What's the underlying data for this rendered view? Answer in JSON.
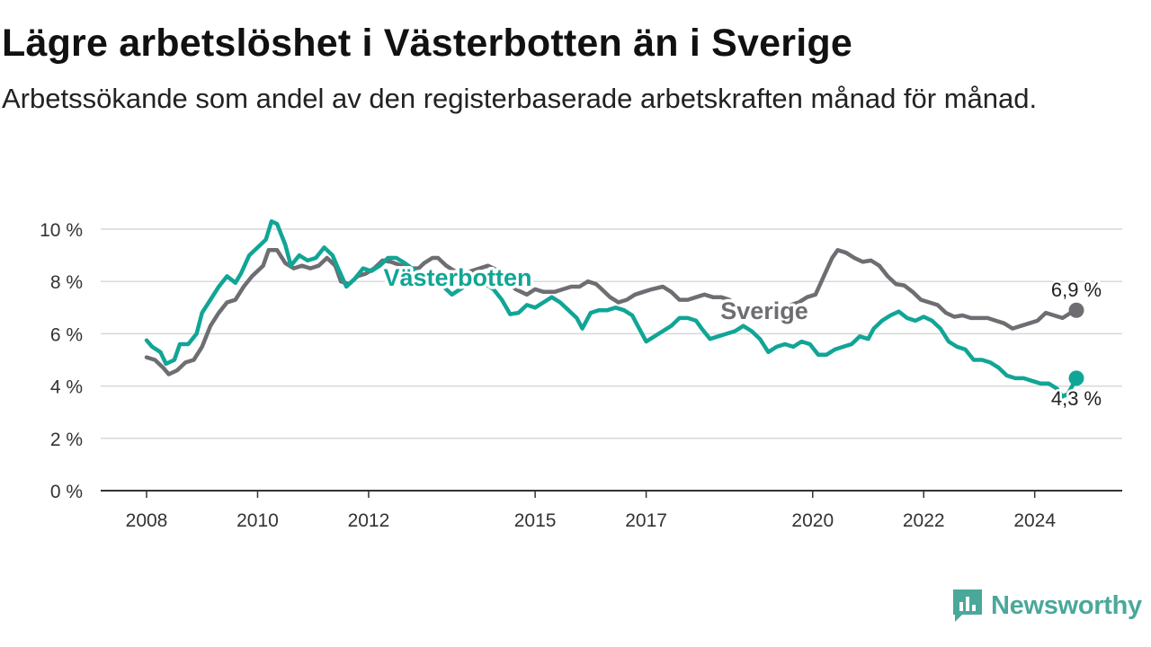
{
  "header": {
    "title": "Lägre arbetslöshet i Västerbotten än i Sverige",
    "subtitle": "Arbetssökande som andel av den registerbaserade arbetskraften månad för månad."
  },
  "brand": {
    "name": "Newsworthy",
    "color": "#4aa89a"
  },
  "chart_data": {
    "type": "line",
    "title": "Lägre arbetslöshet i Västerbotten än i Sverige",
    "subtitle": "Arbetssökande som andel av den registerbaserade arbetskraften månad för månad.",
    "xlabel": "",
    "ylabel": "",
    "x_range": [
      2008.0,
      2024.75
    ],
    "ylim": [
      0,
      10
    ],
    "y_ticks": [
      {
        "value": 0,
        "label": "0 %"
      },
      {
        "value": 2,
        "label": "2 %"
      },
      {
        "value": 4,
        "label": "4 %"
      },
      {
        "value": 6,
        "label": "6 %"
      },
      {
        "value": 8,
        "label": "8 %"
      },
      {
        "value": 10,
        "label": "10 %"
      }
    ],
    "x_ticks": [
      {
        "value": 2008,
        "label": "2008"
      },
      {
        "value": 2010,
        "label": "2010"
      },
      {
        "value": 2012,
        "label": "2012"
      },
      {
        "value": 2015,
        "label": "2015"
      },
      {
        "value": 2017,
        "label": "2017"
      },
      {
        "value": 2020,
        "label": "2020"
      },
      {
        "value": 2022,
        "label": "2022"
      },
      {
        "value": 2024,
        "label": "2024"
      }
    ],
    "grid": true,
    "legend": "inline labels",
    "series": [
      {
        "name": "Sverige",
        "color": "#6e6d72",
        "end_value": 6.9,
        "end_label": "6,9 %",
        "points": [
          [
            2008.0,
            5.1
          ],
          [
            2008.15,
            5.0
          ],
          [
            2008.3,
            4.7
          ],
          [
            2008.4,
            4.45
          ],
          [
            2008.55,
            4.6
          ],
          [
            2008.7,
            4.9
          ],
          [
            2008.85,
            5.0
          ],
          [
            2009.0,
            5.5
          ],
          [
            2009.15,
            6.3
          ],
          [
            2009.3,
            6.8
          ],
          [
            2009.45,
            7.2
          ],
          [
            2009.6,
            7.3
          ],
          [
            2009.75,
            7.8
          ],
          [
            2009.9,
            8.2
          ],
          [
            2010.1,
            8.6
          ],
          [
            2010.2,
            9.2
          ],
          [
            2010.35,
            9.2
          ],
          [
            2010.5,
            8.7
          ],
          [
            2010.65,
            8.5
          ],
          [
            2010.8,
            8.6
          ],
          [
            2010.95,
            8.5
          ],
          [
            2011.1,
            8.6
          ],
          [
            2011.25,
            8.9
          ],
          [
            2011.4,
            8.6
          ],
          [
            2011.5,
            8.0
          ],
          [
            2011.65,
            7.9
          ],
          [
            2011.8,
            8.2
          ],
          [
            2011.95,
            8.3
          ],
          [
            2012.1,
            8.5
          ],
          [
            2012.25,
            8.8
          ],
          [
            2012.4,
            8.75
          ],
          [
            2012.6,
            8.6
          ],
          [
            2012.75,
            8.5
          ],
          [
            2012.9,
            8.5
          ],
          [
            2013.0,
            8.7
          ],
          [
            2013.15,
            8.9
          ],
          [
            2013.25,
            8.9
          ],
          [
            2013.4,
            8.6
          ],
          [
            2013.55,
            8.4
          ],
          [
            2013.7,
            8.3
          ],
          [
            2013.85,
            8.4
          ],
          [
            2014.0,
            8.5
          ],
          [
            2014.15,
            8.6
          ],
          [
            2014.35,
            8.4
          ],
          [
            2014.5,
            8.0
          ],
          [
            2014.65,
            7.7
          ],
          [
            2014.85,
            7.5
          ],
          [
            2015.0,
            7.7
          ],
          [
            2015.15,
            7.6
          ],
          [
            2015.35,
            7.6
          ],
          [
            2015.5,
            7.7
          ],
          [
            2015.65,
            7.8
          ],
          [
            2015.8,
            7.8
          ],
          [
            2015.95,
            8.0
          ],
          [
            2016.1,
            7.9
          ],
          [
            2016.2,
            7.7
          ],
          [
            2016.35,
            7.4
          ],
          [
            2016.5,
            7.2
          ],
          [
            2016.65,
            7.3
          ],
          [
            2016.8,
            7.5
          ],
          [
            2016.95,
            7.6
          ],
          [
            2017.1,
            7.7
          ],
          [
            2017.3,
            7.8
          ],
          [
            2017.45,
            7.6
          ],
          [
            2017.6,
            7.3
          ],
          [
            2017.75,
            7.3
          ],
          [
            2017.9,
            7.4
          ],
          [
            2018.05,
            7.5
          ],
          [
            2018.2,
            7.4
          ],
          [
            2018.35,
            7.4
          ],
          [
            2018.5,
            7.3
          ],
          [
            2018.65,
            7.0
          ],
          [
            2018.8,
            6.8
          ],
          [
            2018.95,
            6.9
          ],
          [
            2019.1,
            7.0
          ],
          [
            2019.25,
            6.9
          ],
          [
            2019.45,
            7.0
          ],
          [
            2019.6,
            7.1
          ],
          [
            2019.75,
            7.2
          ],
          [
            2019.9,
            7.4
          ],
          [
            2020.05,
            7.5
          ],
          [
            2020.2,
            8.2
          ],
          [
            2020.35,
            8.9
          ],
          [
            2020.45,
            9.2
          ],
          [
            2020.6,
            9.1
          ],
          [
            2020.75,
            8.9
          ],
          [
            2020.9,
            8.75
          ],
          [
            2021.05,
            8.8
          ],
          [
            2021.2,
            8.6
          ],
          [
            2021.35,
            8.2
          ],
          [
            2021.5,
            7.9
          ],
          [
            2021.65,
            7.85
          ],
          [
            2021.8,
            7.6
          ],
          [
            2021.95,
            7.3
          ],
          [
            2022.1,
            7.2
          ],
          [
            2022.25,
            7.1
          ],
          [
            2022.4,
            6.8
          ],
          [
            2022.55,
            6.65
          ],
          [
            2022.7,
            6.7
          ],
          [
            2022.85,
            6.6
          ],
          [
            2023.0,
            6.6
          ],
          [
            2023.15,
            6.6
          ],
          [
            2023.3,
            6.5
          ],
          [
            2023.45,
            6.4
          ],
          [
            2023.6,
            6.2
          ],
          [
            2023.75,
            6.3
          ],
          [
            2023.9,
            6.4
          ],
          [
            2024.05,
            6.5
          ],
          [
            2024.2,
            6.8
          ],
          [
            2024.35,
            6.7
          ],
          [
            2024.5,
            6.6
          ],
          [
            2024.65,
            6.8
          ],
          [
            2024.75,
            6.9
          ]
        ]
      },
      {
        "name": "Västerbotten",
        "color": "#11a596",
        "end_value": 4.3,
        "end_label": "4,3 %",
        "points": [
          [
            2008.0,
            5.75
          ],
          [
            2008.1,
            5.5
          ],
          [
            2008.25,
            5.3
          ],
          [
            2008.35,
            4.85
          ],
          [
            2008.5,
            5.0
          ],
          [
            2008.6,
            5.6
          ],
          [
            2008.75,
            5.6
          ],
          [
            2008.9,
            6.0
          ],
          [
            2009.0,
            6.8
          ],
          [
            2009.15,
            7.3
          ],
          [
            2009.3,
            7.8
          ],
          [
            2009.45,
            8.2
          ],
          [
            2009.6,
            7.95
          ],
          [
            2009.7,
            8.3
          ],
          [
            2009.85,
            9.0
          ],
          [
            2010.0,
            9.3
          ],
          [
            2010.15,
            9.6
          ],
          [
            2010.25,
            10.3
          ],
          [
            2010.35,
            10.2
          ],
          [
            2010.5,
            9.4
          ],
          [
            2010.6,
            8.6
          ],
          [
            2010.75,
            9.0
          ],
          [
            2010.9,
            8.8
          ],
          [
            2011.05,
            8.9
          ],
          [
            2011.2,
            9.3
          ],
          [
            2011.35,
            9.0
          ],
          [
            2011.45,
            8.5
          ],
          [
            2011.6,
            7.8
          ],
          [
            2011.75,
            8.1
          ],
          [
            2011.9,
            8.5
          ],
          [
            2012.05,
            8.4
          ],
          [
            2012.2,
            8.6
          ],
          [
            2012.35,
            8.9
          ],
          [
            2012.5,
            8.9
          ],
          [
            2012.65,
            8.7
          ],
          [
            2012.85,
            8.4
          ],
          [
            2013.0,
            8.3
          ],
          [
            2013.15,
            8.1
          ],
          [
            2013.35,
            7.8
          ],
          [
            2013.5,
            7.5
          ],
          [
            2013.65,
            7.7
          ],
          [
            2013.8,
            7.9
          ],
          [
            2013.95,
            8.0
          ],
          [
            2014.1,
            7.9
          ],
          [
            2014.25,
            7.7
          ],
          [
            2014.4,
            7.3
          ],
          [
            2014.55,
            6.75
          ],
          [
            2014.7,
            6.8
          ],
          [
            2014.85,
            7.1
          ],
          [
            2015.0,
            7.0
          ],
          [
            2015.15,
            7.2
          ],
          [
            2015.3,
            7.4
          ],
          [
            2015.45,
            7.2
          ],
          [
            2015.6,
            6.9
          ],
          [
            2015.75,
            6.6
          ],
          [
            2015.85,
            6.2
          ],
          [
            2016.0,
            6.8
          ],
          [
            2016.15,
            6.9
          ],
          [
            2016.3,
            6.9
          ],
          [
            2016.45,
            7.0
          ],
          [
            2016.6,
            6.9
          ],
          [
            2016.75,
            6.7
          ],
          [
            2016.85,
            6.3
          ],
          [
            2017.0,
            5.7
          ],
          [
            2017.15,
            5.9
          ],
          [
            2017.3,
            6.1
          ],
          [
            2017.45,
            6.3
          ],
          [
            2017.6,
            6.6
          ],
          [
            2017.75,
            6.6
          ],
          [
            2017.9,
            6.5
          ],
          [
            2018.0,
            6.2
          ],
          [
            2018.15,
            5.8
          ],
          [
            2018.3,
            5.9
          ],
          [
            2018.45,
            6.0
          ],
          [
            2018.6,
            6.1
          ],
          [
            2018.75,
            6.3
          ],
          [
            2018.9,
            6.1
          ],
          [
            2019.05,
            5.8
          ],
          [
            2019.2,
            5.3
          ],
          [
            2019.35,
            5.5
          ],
          [
            2019.5,
            5.6
          ],
          [
            2019.65,
            5.5
          ],
          [
            2019.8,
            5.7
          ],
          [
            2019.95,
            5.6
          ],
          [
            2020.1,
            5.2
          ],
          [
            2020.25,
            5.2
          ],
          [
            2020.4,
            5.4
          ],
          [
            2020.55,
            5.5
          ],
          [
            2020.7,
            5.6
          ],
          [
            2020.85,
            5.9
          ],
          [
            2021.0,
            5.8
          ],
          [
            2021.1,
            6.2
          ],
          [
            2021.25,
            6.5
          ],
          [
            2021.4,
            6.7
          ],
          [
            2021.55,
            6.85
          ],
          [
            2021.7,
            6.6
          ],
          [
            2021.85,
            6.5
          ],
          [
            2022.0,
            6.65
          ],
          [
            2022.15,
            6.5
          ],
          [
            2022.3,
            6.2
          ],
          [
            2022.45,
            5.7
          ],
          [
            2022.6,
            5.5
          ],
          [
            2022.75,
            5.4
          ],
          [
            2022.9,
            5.0
          ],
          [
            2023.05,
            5.0
          ],
          [
            2023.2,
            4.9
          ],
          [
            2023.35,
            4.7
          ],
          [
            2023.5,
            4.4
          ],
          [
            2023.65,
            4.3
          ],
          [
            2023.8,
            4.3
          ],
          [
            2023.95,
            4.2
          ],
          [
            2024.1,
            4.1
          ],
          [
            2024.25,
            4.1
          ],
          [
            2024.4,
            3.9
          ],
          [
            2024.5,
            3.6
          ],
          [
            2024.6,
            3.7
          ],
          [
            2024.75,
            4.3
          ]
        ]
      }
    ]
  }
}
